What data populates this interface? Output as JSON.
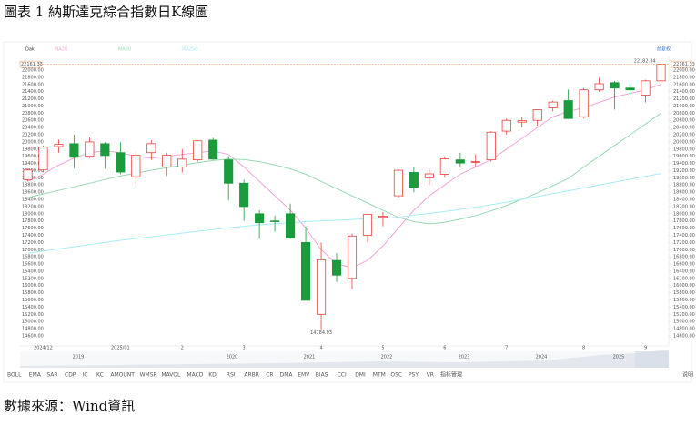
{
  "title": "圖表 1 納斯達克綜合指數日K線圖",
  "source": "數據來源：Wind資訊",
  "chart_data": {
    "type": "candlestick",
    "categories": [
      null,
      "2024/12",
      null,
      null,
      null,
      null,
      "2025/01",
      null,
      null,
      null,
      "2",
      null,
      null,
      null,
      "3",
      null,
      null,
      null,
      null,
      "4",
      null,
      null,
      null,
      "5",
      null,
      null,
      null,
      "6",
      null,
      null,
      null,
      "7",
      null,
      null,
      null,
      null,
      "8",
      null,
      null,
      null,
      "9",
      null
    ],
    "open": [
      18950,
      19220,
      19870,
      19950,
      19600,
      19950,
      19700,
      19030,
      19700,
      19300,
      19300,
      19500,
      20050,
      19500,
      18850,
      18000,
      17800,
      18000,
      17200,
      15200,
      16700,
      16200,
      17400,
      17900,
      18500,
      19150,
      19000,
      19100,
      19500,
      19450,
      19500,
      20300,
      20550,
      20600,
      20950,
      21150,
      20700,
      21450,
      21650,
      21500,
      21300,
      21700
    ],
    "high": [
      19250,
      19900,
      20060,
      20200,
      20120,
      19990,
      19990,
      19700,
      20050,
      19700,
      19800,
      20050,
      20110,
      19600,
      18950,
      18100,
      17950,
      18280,
      17650,
      17200,
      16900,
      17450,
      17990,
      18050,
      19230,
      19300,
      19220,
      19600,
      19700,
      19650,
      20300,
      20650,
      20700,
      20900,
      21150,
      21460,
      21500,
      21800,
      21700,
      21600,
      21730,
      22182.34
    ],
    "low": [
      18900,
      19150,
      19700,
      19270,
      19550,
      19250,
      19100,
      18830,
      19500,
      19050,
      19150,
      19450,
      19500,
      18370,
      17800,
      17300,
      17500,
      17300,
      15580,
      14784.03,
      16100,
      15900,
      17200,
      17650,
      18450,
      18600,
      18800,
      19000,
      19300,
      19300,
      19450,
      20200,
      20400,
      20450,
      20850,
      20650,
      20650,
      21400,
      20900,
      21300,
      21100,
      21650
    ],
    "close": [
      19218,
      19860,
      19930,
      19570,
      20000,
      19620,
      19160,
      19630,
      19950,
      19630,
      19520,
      20030,
      19520,
      18850,
      18200,
      17750,
      17780,
      17320,
      15590,
      16720,
      16290,
      17380,
      17980,
      17930,
      19210,
      18740,
      19110,
      19530,
      19410,
      19450,
      20270,
      20600,
      20590,
      20900,
      21110,
      20650,
      21450,
      21620,
      21500,
      21450,
      21700,
      22161.33
    ],
    "up_color": "#e8413c",
    "down_color": "#1a9b3c",
    "last_color": "#f39a5b",
    "series": [
      {
        "name": "MA20",
        "color": "#f2a7d6",
        "values": [
          18900,
          19100,
          19350,
          19550,
          19700,
          19750,
          19700,
          19600,
          19550,
          19600,
          19650,
          19700,
          19750,
          19650,
          19300,
          18900,
          18500,
          18100,
          17600,
          17000,
          16600,
          16500,
          16700,
          17100,
          17600,
          18100,
          18500,
          18800,
          19100,
          19300,
          19500,
          19800,
          20100,
          20400,
          20700,
          20850,
          20950,
          21100,
          21250,
          21350,
          21450,
          21600
        ]
      },
      {
        "name": "MA60",
        "color": "#9ad9b4",
        "values": [
          18450,
          18550,
          18650,
          18750,
          18850,
          18950,
          19050,
          19130,
          19210,
          19280,
          19350,
          19420,
          19480,
          19520,
          19510,
          19450,
          19360,
          19250,
          19100,
          18900,
          18700,
          18500,
          18300,
          18100,
          17900,
          17780,
          17720,
          17760,
          17850,
          17950,
          18080,
          18230,
          18400,
          18580,
          18780,
          18980,
          19300,
          19600,
          19900,
          20200,
          20500,
          20800
        ]
      },
      {
        "name": "MA250",
        "color": "#a8ecf6",
        "values": [
          16900,
          16960,
          17020,
          17080,
          17140,
          17200,
          17260,
          17310,
          17360,
          17410,
          17460,
          17510,
          17560,
          17610,
          17650,
          17690,
          17720,
          17750,
          17780,
          17800,
          17820,
          17840,
          17860,
          17880,
          17900,
          17960,
          18010,
          18060,
          18120,
          18180,
          18250,
          18320,
          18400,
          18480,
          18560,
          18640,
          18720,
          18800,
          18880,
          18960,
          19040,
          19120
        ]
      }
    ],
    "ylim": [
      14320,
      22380
    ],
    "yticks": [
      {
        "value": 22000,
        "label": "22000.00"
      },
      {
        "value": 21800,
        "label": "21800.00"
      },
      {
        "value": 21600,
        "label": "21600.00"
      },
      {
        "value": 21400,
        "label": "21400.00"
      },
      {
        "value": 21200,
        "label": "21200.00"
      },
      {
        "value": 21000,
        "label": "21000.00"
      },
      {
        "value": 20800,
        "label": "20800.00"
      },
      {
        "value": 20600,
        "label": "20600.00"
      },
      {
        "value": 20400,
        "label": "20400.00"
      },
      {
        "value": 20200,
        "label": "20200.00"
      },
      {
        "value": 20000,
        "label": "20000.00"
      },
      {
        "value": 19800,
        "label": "19800.00"
      },
      {
        "value": 19600,
        "label": "19600.00"
      },
      {
        "value": 19400,
        "label": "19400.00"
      },
      {
        "value": 19200,
        "label": "19200.00"
      },
      {
        "value": 19000,
        "label": "19000.00"
      },
      {
        "value": 18800,
        "label": "18800.00"
      },
      {
        "value": 18600,
        "label": "18600.00"
      },
      {
        "value": 18400,
        "label": "18400.00"
      },
      {
        "value": 18200,
        "label": "18200.00"
      },
      {
        "value": 18000,
        "label": "18000.00"
      },
      {
        "value": 17800,
        "label": "17800.00"
      },
      {
        "value": 17600,
        "label": "17600.00"
      },
      {
        "value": 17400,
        "label": "17400.00"
      },
      {
        "value": 17200,
        "label": "17200.00"
      },
      {
        "value": 17000,
        "label": "17000.00"
      },
      {
        "value": 16800,
        "label": "16800.00"
      },
      {
        "value": 16600,
        "label": "16600.00"
      },
      {
        "value": 16400,
        "label": "16400.00"
      },
      {
        "value": 16200,
        "label": "16200.00"
      },
      {
        "value": 16000,
        "label": "16000.00"
      },
      {
        "value": 15800,
        "label": "15800.00"
      },
      {
        "value": 15600,
        "label": "15600.00"
      },
      {
        "value": 15400,
        "label": "15400.00"
      },
      {
        "value": 15200,
        "label": "15200.00"
      },
      {
        "value": 15000,
        "label": "15000.00"
      },
      {
        "value": 14800,
        "label": "14800.00"
      },
      {
        "value": 14600,
        "label": "14600.00"
      }
    ],
    "toolbar_label": "Dak",
    "adjust_button": "前复权",
    "timeline": [
      "2019",
      "2020",
      "2021",
      "2022",
      "2023",
      "2024",
      "2025"
    ],
    "indicators": [
      "BOLL",
      "EMA",
      "SAR",
      "CDP",
      "IC",
      "KC",
      "AMOUNT",
      "WMSR",
      "MAVOL",
      "MACD",
      "KDJ",
      "RSI",
      "ARBR",
      "CR",
      "DMA",
      "EMV",
      "BIAS",
      "CCI",
      "DMI",
      "MTM",
      "OSC",
      "PSY",
      "VR",
      "指标管理"
    ],
    "active_indicator": 1,
    "help_button": "说明"
  }
}
